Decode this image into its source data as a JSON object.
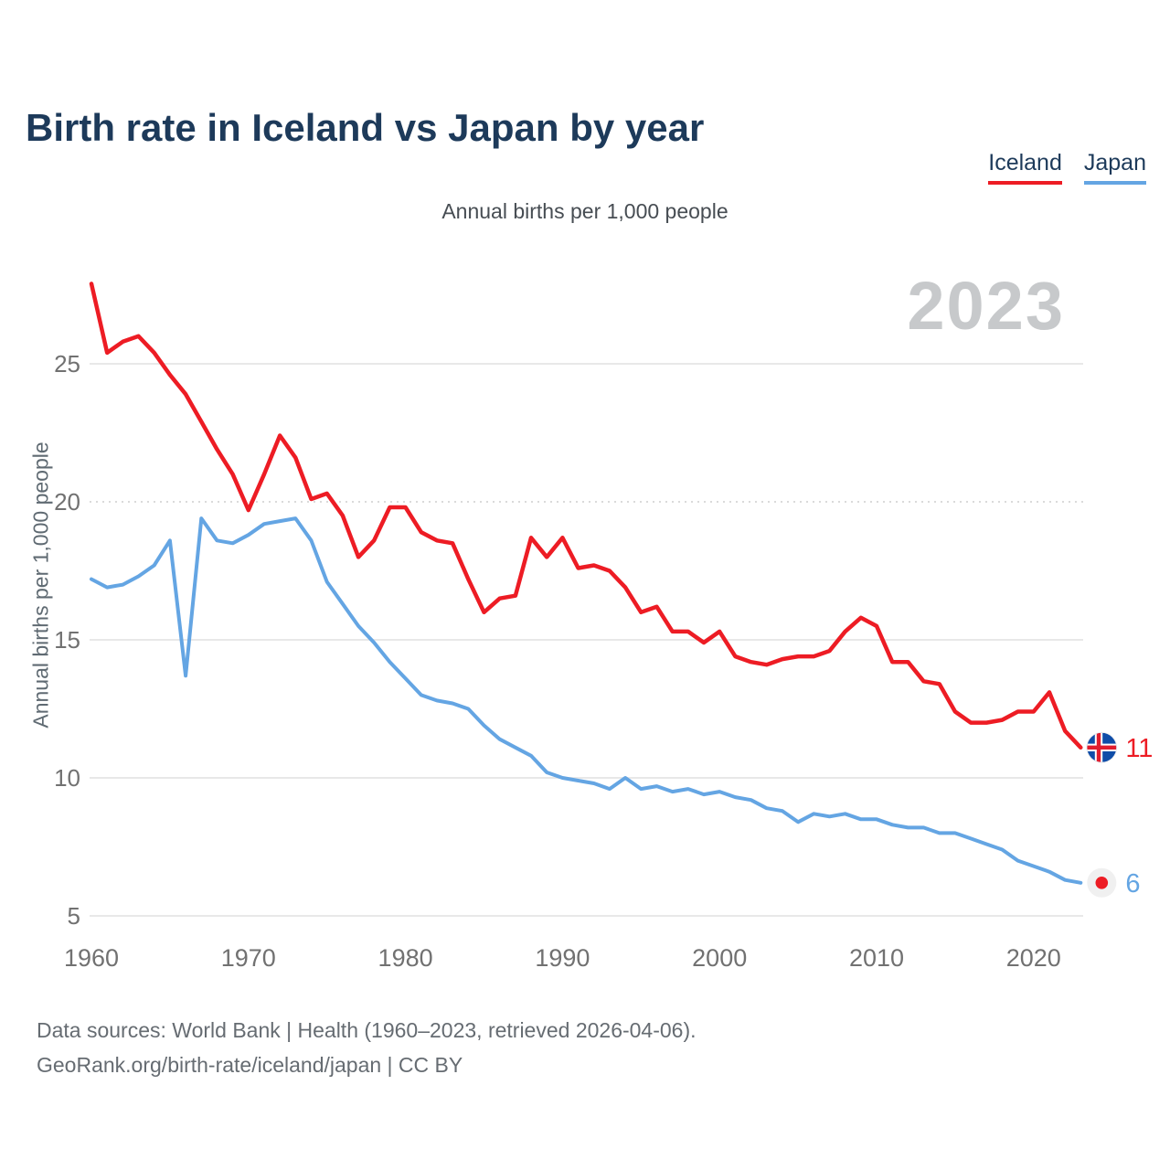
{
  "header": {
    "title": "Birth rate in Iceland vs Japan by year"
  },
  "chart_data": {
    "type": "line",
    "title": "Birth rate in Iceland vs Japan by year",
    "subtitle": "Annual births per 1,000 people",
    "ylabel": "Annual births per 1,000 people",
    "xlabel": "",
    "watermark": "2023",
    "grid": "horizontal",
    "legend_position": "top-right",
    "ylim": [
      5,
      28.5
    ],
    "yticks": [
      5,
      10,
      15,
      20,
      25
    ],
    "xticks": [
      1960,
      1970,
      1980,
      1990,
      2000,
      2010,
      2020
    ],
    "dotted_gridline_at": 20,
    "x": [
      1960,
      1961,
      1962,
      1963,
      1964,
      1965,
      1966,
      1967,
      1968,
      1969,
      1970,
      1971,
      1972,
      1973,
      1974,
      1975,
      1976,
      1977,
      1978,
      1979,
      1980,
      1981,
      1982,
      1983,
      1984,
      1985,
      1986,
      1987,
      1988,
      1989,
      1990,
      1991,
      1992,
      1993,
      1994,
      1995,
      1996,
      1997,
      1998,
      1999,
      2000,
      2001,
      2002,
      2003,
      2004,
      2005,
      2006,
      2007,
      2008,
      2009,
      2010,
      2011,
      2012,
      2013,
      2014,
      2015,
      2016,
      2017,
      2018,
      2019,
      2020,
      2021,
      2022,
      2023
    ],
    "series": [
      {
        "name": "Iceland",
        "color": "#ED1C24",
        "end_label": "11",
        "end_marker": "iceland-flag",
        "values": [
          27.9,
          25.4,
          25.8,
          26.0,
          25.4,
          24.6,
          23.9,
          22.9,
          21.9,
          21.0,
          19.7,
          21.0,
          22.4,
          21.6,
          20.1,
          20.3,
          19.5,
          18.0,
          18.6,
          19.8,
          19.8,
          18.9,
          18.6,
          18.5,
          17.2,
          16.0,
          16.5,
          16.6,
          18.7,
          18.0,
          18.7,
          17.6,
          17.7,
          17.5,
          16.9,
          16.0,
          16.2,
          15.3,
          15.3,
          14.9,
          15.3,
          14.4,
          14.2,
          14.1,
          14.3,
          14.4,
          14.4,
          14.6,
          15.3,
          15.8,
          15.5,
          14.2,
          14.2,
          13.5,
          13.4,
          12.4,
          12.0,
          12.0,
          12.1,
          12.4,
          12.4,
          13.1,
          11.7,
          11.1
        ]
      },
      {
        "name": "Japan",
        "color": "#64A5E3",
        "end_label": "6",
        "end_marker": "japan-flag",
        "values": [
          17.2,
          16.9,
          17.0,
          17.3,
          17.7,
          18.6,
          13.7,
          19.4,
          18.6,
          18.5,
          18.8,
          19.2,
          19.3,
          19.4,
          18.6,
          17.1,
          16.3,
          15.5,
          14.9,
          14.2,
          13.6,
          13.0,
          12.8,
          12.7,
          12.5,
          11.9,
          11.4,
          11.1,
          10.8,
          10.2,
          10.0,
          9.9,
          9.8,
          9.6,
          10.0,
          9.6,
          9.7,
          9.5,
          9.6,
          9.4,
          9.5,
          9.3,
          9.2,
          8.9,
          8.8,
          8.4,
          8.7,
          8.6,
          8.7,
          8.5,
          8.5,
          8.3,
          8.2,
          8.2,
          8.0,
          8.0,
          7.8,
          7.6,
          7.4,
          7.0,
          6.8,
          6.6,
          6.3,
          6.2
        ]
      }
    ],
    "colors": {
      "title_text": "#1d3a5a",
      "axis_text": "#717171",
      "grid": "#e8e8e8",
      "watermark": "#c7c9cb",
      "iceland_flag_blue": "#0F4DA8",
      "iceland_flag_red": "#E11D2E",
      "japan_flag_dot_red": "#ED1C24",
      "marker_halo": "#f0f0f0"
    }
  },
  "footer": {
    "line1": "Data sources: World Bank | Health (1960–2023, retrieved 2026-04-06).",
    "line2": "GeoRank.org/birth-rate/iceland/japan | CC BY"
  }
}
